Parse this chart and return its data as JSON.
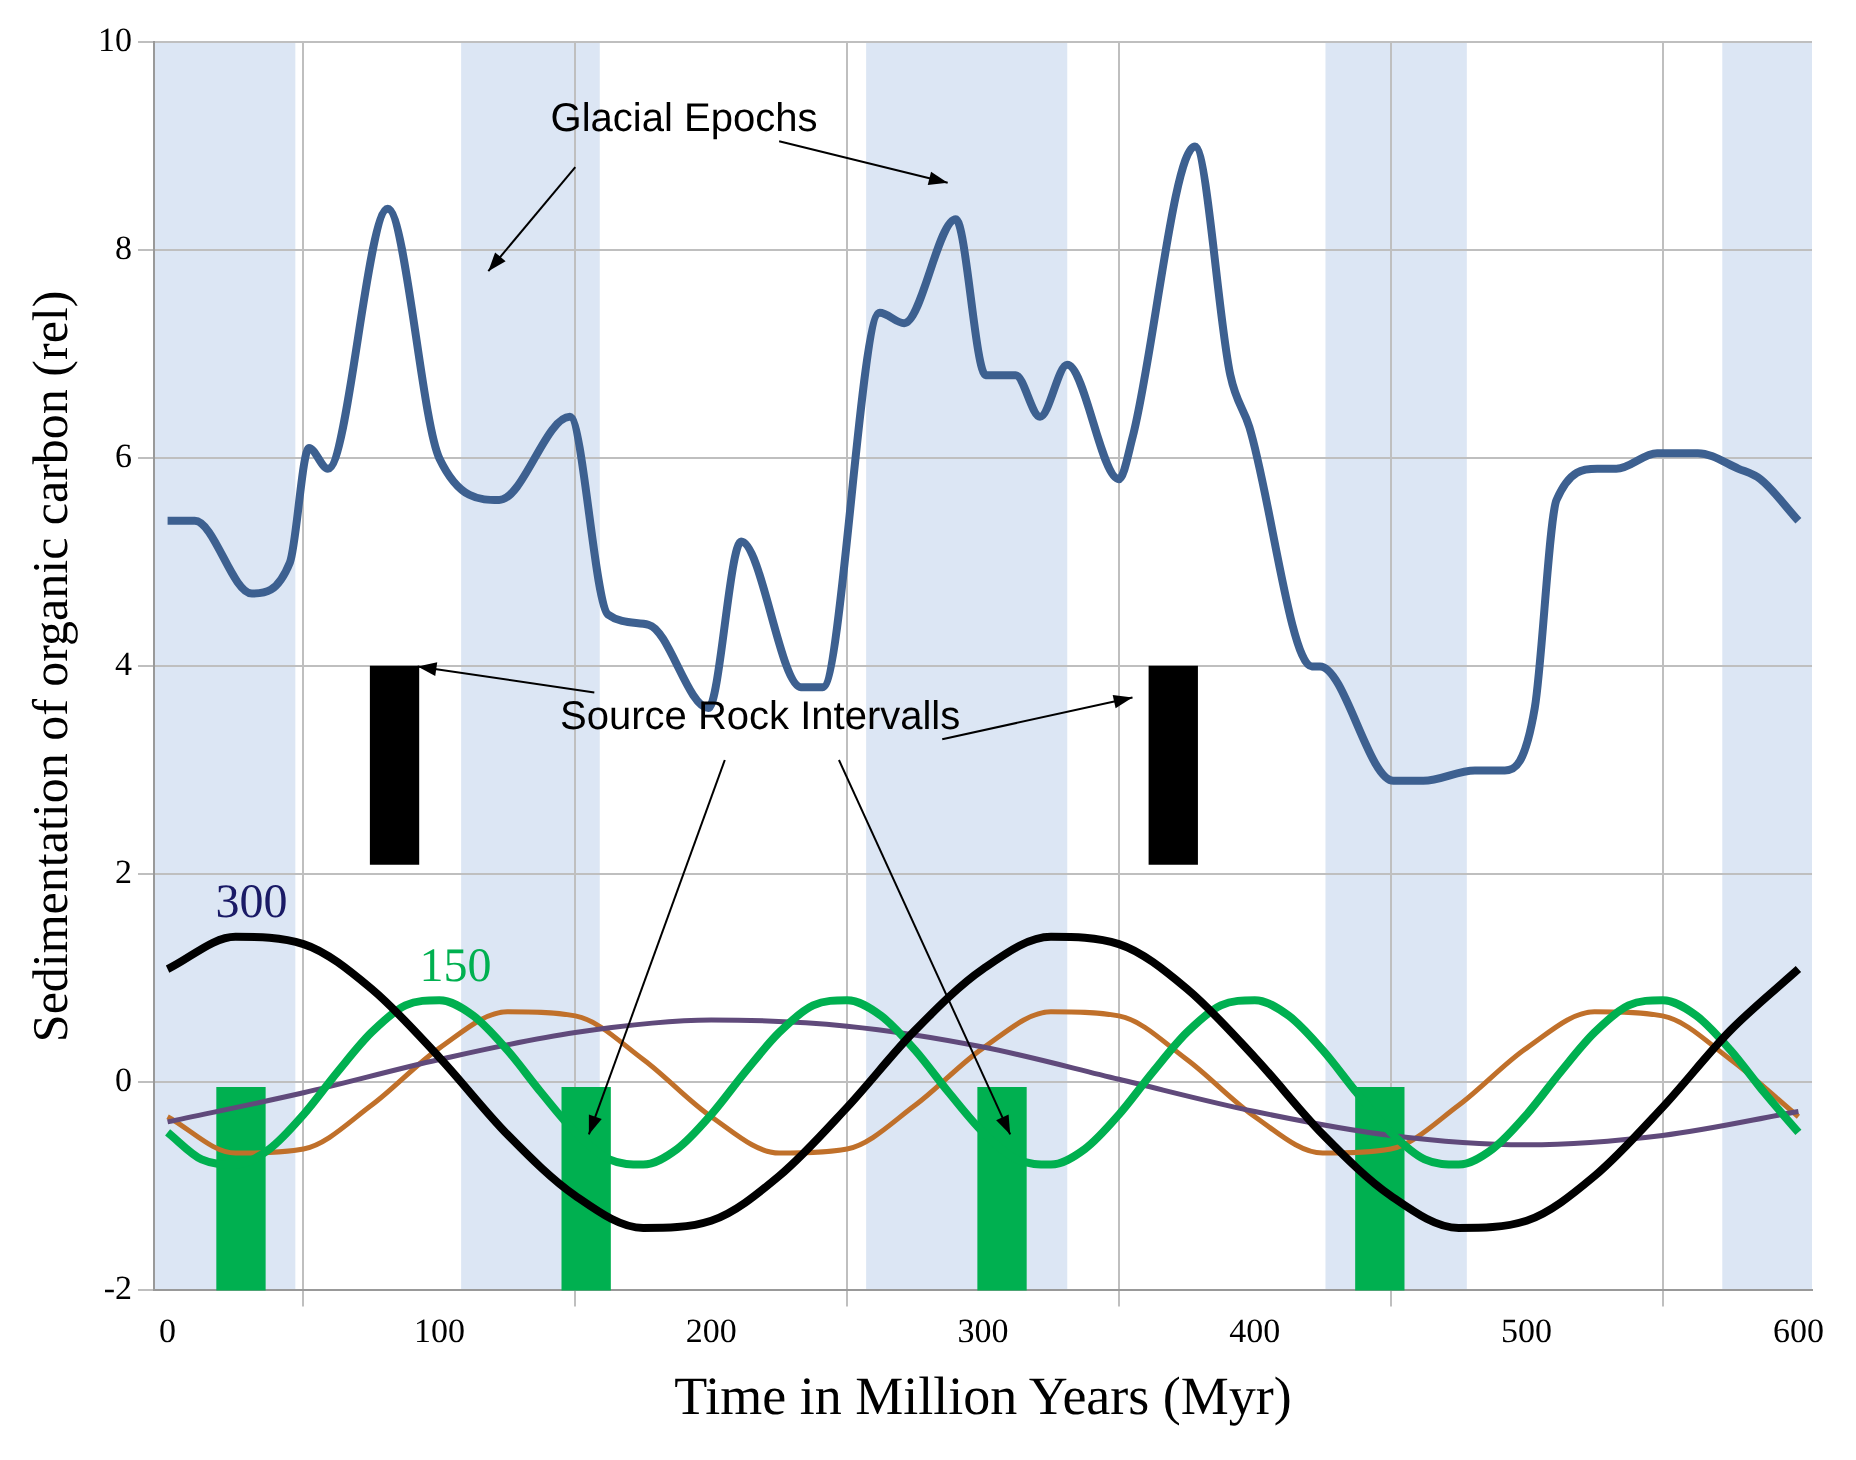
{
  "chart_data": {
    "type": "line",
    "xlabel": "Time in Million Years (Myr)",
    "ylabel": "Sedimentation of organic carbon (rel)",
    "xlim": [
      -5,
      605
    ],
    "xticks": [
      0,
      100,
      200,
      300,
      400,
      500,
      600
    ],
    "ylim": [
      -2,
      10
    ],
    "yticks": [
      -2,
      0,
      2,
      4,
      6,
      8,
      10
    ],
    "grid": true,
    "annotations": [
      "Glacial Epochs",
      {
        "text": "Source Rock Intervalls",
        "x": 92,
        "y": 4.0
      }
    ],
    "bands": [
      {
        "axis": "x",
        "from": -5,
        "to": 47,
        "color": "#dce6f4"
      },
      {
        "axis": "x",
        "from": 108,
        "to": 159,
        "color": "#dce6f4"
      },
      {
        "axis": "x",
        "from": 257,
        "to": 331,
        "color": "#dce6f4"
      },
      {
        "axis": "x",
        "from": 426,
        "to": 478,
        "color": "#dce6f4"
      },
      {
        "axis": "x",
        "from": 572,
        "to": 605,
        "color": "#dce6f4"
      }
    ],
    "series": [
      {
        "color": "#3d6090",
        "x": [
          0,
          10,
          31,
          45,
          52,
          59,
          81,
          100,
          122,
          148,
          162,
          177,
          199,
          211,
          233,
          241,
          262,
          271,
          290,
          301,
          312,
          321,
          331,
          350,
          355,
          378,
          391,
          398,
          421,
          424,
          451,
          462,
          481,
          492,
          503,
          511,
          526,
          533,
          548,
          563,
          578,
          586,
          600
        ],
        "values": [
          5.4,
          5.4,
          4.7,
          5.0,
          6.1,
          5.9,
          8.4,
          6.0,
          5.6,
          6.4,
          4.5,
          4.4,
          3.6,
          5.2,
          3.8,
          3.8,
          7.4,
          7.3,
          8.3,
          6.8,
          6.8,
          6.4,
          6.9,
          5.8,
          6.2,
          9.0,
          6.8,
          6.3,
          4.0,
          4.0,
          2.9,
          2.9,
          3.0,
          3.0,
          3.6,
          5.6,
          5.9,
          5.9,
          6.05,
          6.05,
          5.9,
          5.8,
          5.4
        ]
      },
      {
        "name": "300",
        "color": "#000000",
        "x": [
          0,
          25,
          50,
          75,
          100,
          125,
          150,
          175,
          200,
          225,
          250,
          275,
          300,
          325,
          350,
          375,
          400,
          425,
          450,
          475,
          500,
          525,
          550,
          575,
          600
        ],
        "values": [
          1.09,
          1.4,
          1.33,
          0.9,
          0.24,
          -0.5,
          -1.09,
          -1.4,
          -1.33,
          -0.9,
          -0.24,
          0.5,
          1.09,
          1.4,
          1.33,
          0.9,
          0.24,
          -0.5,
          -1.09,
          -1.4,
          -1.33,
          -0.9,
          -0.24,
          0.5,
          1.09
        ]
      },
      {
        "name": "150",
        "color": "#00b050",
        "x": [
          0,
          12.5,
          25,
          37.5,
          50,
          62.5,
          75,
          87.5,
          100,
          112.5,
          125,
          137.5,
          150,
          162.5,
          175,
          187.5,
          200,
          212.5,
          225,
          237.5,
          250,
          262.5,
          275,
          287.5,
          300,
          312.5,
          325,
          337.5,
          350,
          362.5,
          375,
          387.5,
          400,
          412.5,
          425,
          437.5,
          450,
          462.5,
          475,
          487.5,
          500,
          512.5,
          525,
          537.5,
          550,
          562.5,
          575,
          587.5,
          600
        ],
        "values": [
          -0.48,
          -0.74,
          -0.79,
          -0.64,
          -0.31,
          0.1,
          0.48,
          0.74,
          0.79,
          0.64,
          0.31,
          -0.1,
          -0.48,
          -0.74,
          -0.79,
          -0.64,
          -0.31,
          0.1,
          0.48,
          0.74,
          0.79,
          0.64,
          0.31,
          -0.1,
          -0.48,
          -0.74,
          -0.79,
          -0.64,
          -0.31,
          0.1,
          0.48,
          0.74,
          0.79,
          0.64,
          0.31,
          -0.1,
          -0.48,
          -0.74,
          -0.79,
          -0.64,
          -0.31,
          0.1,
          0.48,
          0.74,
          0.79,
          0.64,
          0.31,
          -0.1,
          -0.48
        ]
      },
      {
        "color": "#604a7b",
        "x": [
          0,
          50,
          100,
          150,
          200,
          250,
          300,
          350,
          400,
          450,
          500,
          550,
          600
        ],
        "values": [
          -0.38,
          -0.1,
          0.22,
          0.48,
          0.6,
          0.54,
          0.34,
          0.03,
          -0.28,
          -0.51,
          -0.6,
          -0.51,
          -0.28
        ]
      },
      {
        "color": "#c0702a",
        "x": [
          0,
          25,
          50,
          75,
          100,
          125,
          150,
          175,
          200,
          225,
          250,
          275,
          300,
          325,
          350,
          375,
          400,
          425,
          450,
          475,
          500,
          525,
          550,
          575,
          600
        ],
        "values": [
          -0.33,
          -0.68,
          -0.64,
          -0.22,
          0.33,
          0.68,
          0.64,
          0.22,
          -0.33,
          -0.68,
          -0.64,
          -0.22,
          0.33,
          0.68,
          0.64,
          0.22,
          -0.33,
          -0.68,
          -0.64,
          -0.22,
          0.33,
          0.68,
          0.64,
          0.22,
          -0.33
        ]
      },
      {
        "type": "bar",
        "color": "#000000",
        "x": [
          83.5,
          370
        ],
        "base": [
          2.1,
          2.1
        ],
        "values": [
          1.9,
          1.9
        ]
      },
      {
        "type": "bar",
        "color": "#00b050",
        "x": [
          27,
          154,
          307,
          446
        ],
        "base": [
          -2,
          -2,
          -2,
          -2
        ],
        "values": [
          1.95,
          1.95,
          1.95,
          1.95
        ]
      }
    ]
  }
}
